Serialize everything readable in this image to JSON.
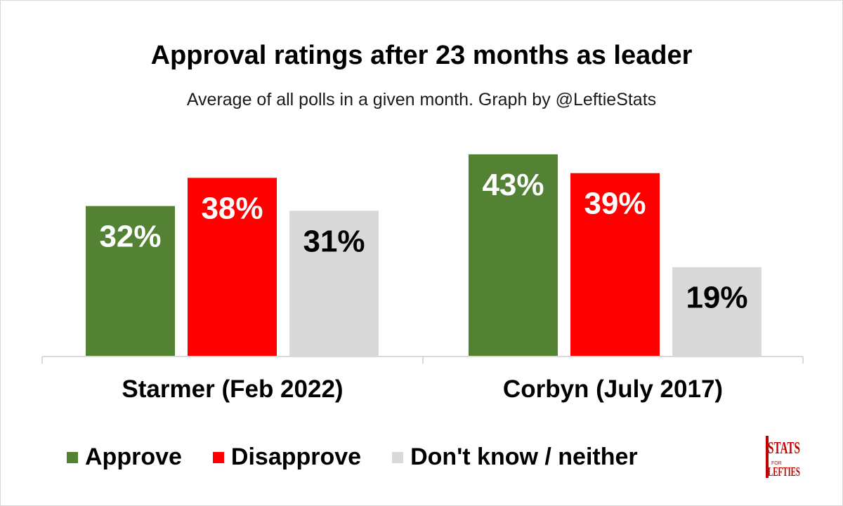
{
  "chart_data": {
    "type": "bar",
    "title": "Approval ratings after 23 months as leader",
    "subtitle": "Average of all polls in a given month. Graph by @LeftieStats",
    "categories": [
      "Starmer (Feb 2022)",
      "Corbyn (July 2017)"
    ],
    "series": [
      {
        "name": "Approve",
        "color": "#548235",
        "label_color": "#ffffff",
        "values": [
          32,
          43
        ]
      },
      {
        "name": "Disapprove",
        "color": "#ff0000",
        "label_color": "#ffffff",
        "values": [
          38,
          39
        ]
      },
      {
        "name": "Don't know / neither",
        "color": "#d9d9d9",
        "label_color": "#000000",
        "values": [
          31,
          19
        ]
      }
    ],
    "value_suffix": "%",
    "ylim": [
      0,
      45
    ],
    "grid": false,
    "legend_position": "bottom"
  },
  "logo": {
    "line1": "STATS",
    "line2": "FOR",
    "line3": "LEFTIES"
  }
}
